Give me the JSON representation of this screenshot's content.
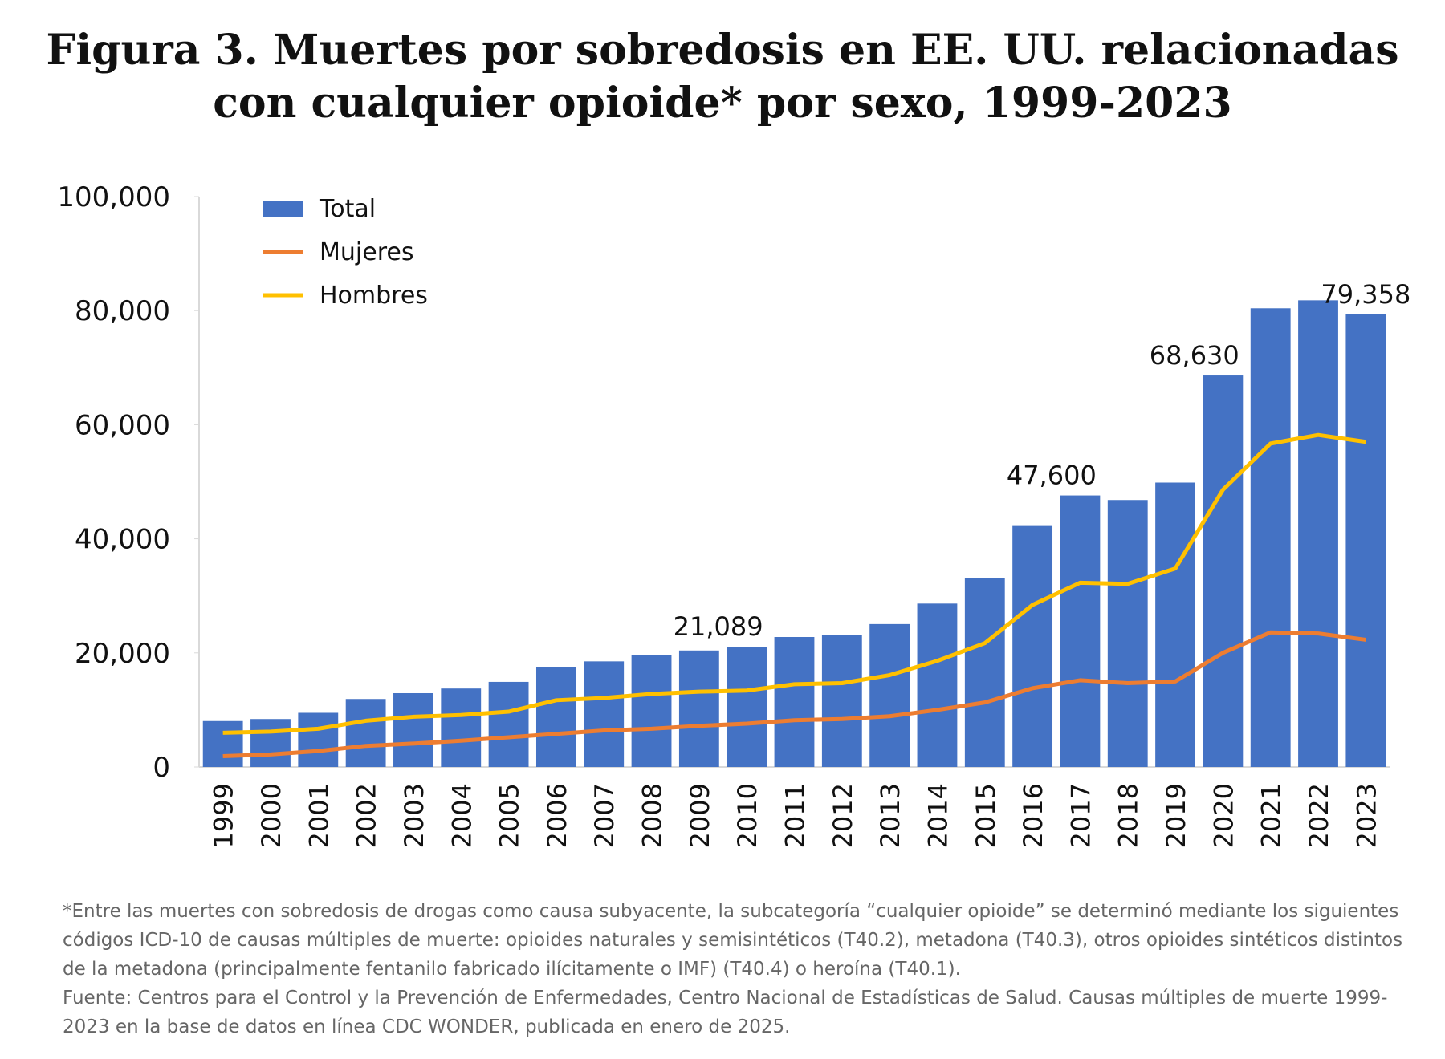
{
  "chart_data": {
    "type": "bar",
    "title": "Figura 3. Muertes por sobredosis en EE. UU. relacionadas con cualquier opioide* por sexo, 1999-2023",
    "categories": [
      "1999",
      "2000",
      "2001",
      "2002",
      "2003",
      "2004",
      "2005",
      "2006",
      "2007",
      "2008",
      "2009",
      "2010",
      "2011",
      "2012",
      "2013",
      "2014",
      "2015",
      "2016",
      "2017",
      "2018",
      "2019",
      "2020",
      "2021",
      "2022",
      "2023"
    ],
    "series": [
      {
        "name": "Total",
        "type": "bar",
        "color": "#4472c4",
        "values": [
          8050,
          8407,
          9496,
          11920,
          12940,
          13756,
          14918,
          17545,
          18516,
          19582,
          20422,
          21089,
          22784,
          23166,
          25052,
          28647,
          33091,
          42249,
          47600,
          46802,
          49860,
          68630,
          80411,
          81806,
          79358
        ],
        "value_labels": [
          null,
          null,
          null,
          null,
          null,
          null,
          null,
          null,
          null,
          null,
          null,
          "21,089",
          null,
          null,
          null,
          null,
          null,
          null,
          "47,600",
          null,
          null,
          "68,630",
          null,
          null,
          "79,358"
        ]
      },
      {
        "name": "Mujeres",
        "type": "line",
        "color": "#ed7d31",
        "values": [
          1900,
          2200,
          2800,
          3700,
          4100,
          4600,
          5200,
          5800,
          6400,
          6700,
          7200,
          7600,
          8200,
          8400,
          8900,
          10000,
          11300,
          13800,
          15200,
          14700,
          15000,
          20000,
          23600,
          23400,
          22300
        ]
      },
      {
        "name": "Hombres",
        "type": "line",
        "color": "#ffc000",
        "values": [
          6000,
          6200,
          6700,
          8100,
          8800,
          9100,
          9700,
          11700,
          12100,
          12800,
          13200,
          13400,
          14500,
          14700,
          16100,
          18600,
          21700,
          28400,
          32300,
          32100,
          34800,
          48600,
          56700,
          58200,
          57000
        ]
      }
    ],
    "ylim": [
      0,
      100000
    ],
    "yticks": [
      0,
      {
        "value": 20000,
        "label": "20,000"
      },
      {
        "value": 40000,
        "label": "40,000"
      },
      {
        "value": 60000,
        "label": "60,000"
      },
      {
        "value": 80000,
        "label": "80,000"
      },
      {
        "value": 100000,
        "label": "100,000"
      }
    ],
    "grid": false,
    "legend": "upper left",
    "footnote": "*Entre las muertes con sobredosis de drogas como causa subyacente, la subcategoría “cualquier opioide” se determinó mediante los siguientes códigos ICD-10 de causas múltiples de muerte: opioides naturales y semisintéticos (T40.2), metadona (T40.3), otros opioides sintéticos distintos de la metadona (principalmente fentanilo fabricado ilícitamente o IMF) (T40.4) o heroína (T40.1).",
    "source": "Fuente: Centros para el Control y la Prevención de Enfermedades, Centro Nacional de Estadísticas de Salud. Causas múltiples de muerte 1999-2023 en la base de datos en línea CDC WONDER, publicada en enero de 2025."
  }
}
